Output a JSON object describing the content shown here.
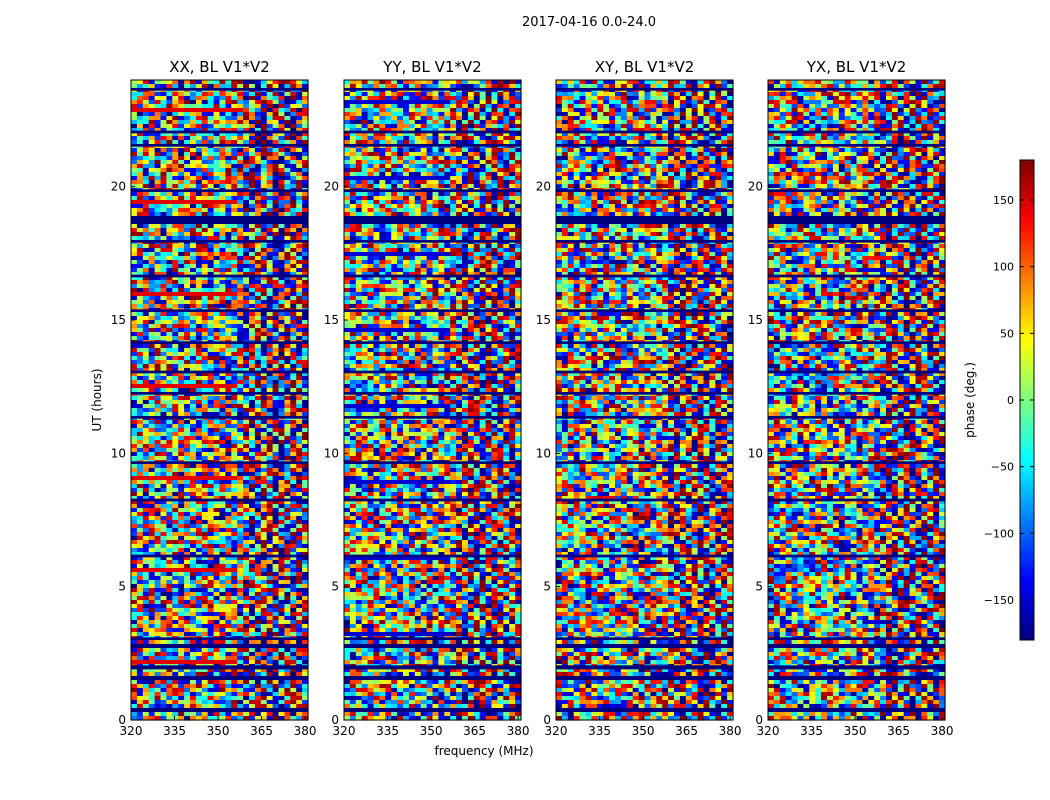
{
  "chart_data": {
    "type": "heatmap",
    "title": "2017-04-16 0.0-24.0",
    "xlabel": "frequency (MHz)",
    "ylabel": "UT (hours)",
    "xlim": [
      320,
      381
    ],
    "ylim": [
      0,
      24
    ],
    "x_ticks": [
      "320",
      "335",
      "350",
      "365",
      "380"
    ],
    "x_tick_values": [
      320,
      335,
      350,
      365,
      380
    ],
    "y_ticks": [
      "0",
      "5",
      "10",
      "15",
      "20"
    ],
    "y_tick_values": [
      0,
      5,
      10,
      15,
      20
    ],
    "panels": [
      {
        "title": "XX, BL V1*V2",
        "polarization": "XX"
      },
      {
        "title": "YY, BL V1*V2",
        "polarization": "YY"
      },
      {
        "title": "XY, BL V1*V2",
        "polarization": "XY"
      },
      {
        "title": "YX, BL V1*V2",
        "polarization": "YX"
      }
    ],
    "colorbar": {
      "label": "phase (deg.)",
      "range": [
        -180,
        180
      ],
      "ticks": [
        "150",
        "100",
        "50",
        "0",
        "−50",
        "−100",
        "−150"
      ],
      "tick_values": [
        150,
        100,
        50,
        0,
        -50,
        -100,
        -150
      ],
      "colormap": "jet"
    },
    "flagged_bands_hours": [
      [
        0.3,
        0.45
      ],
      [
        1.5,
        1.65
      ],
      [
        1.9,
        2.05
      ],
      [
        2.7,
        2.85
      ],
      [
        3.0,
        3.1
      ],
      [
        6.1,
        6.2
      ],
      [
        8.2,
        8.3
      ],
      [
        9.6,
        9.7
      ],
      [
        11.3,
        11.4
      ],
      [
        12.2,
        12.3
      ],
      [
        13.0,
        13.1
      ],
      [
        14.1,
        14.2
      ],
      [
        15.3,
        15.4
      ],
      [
        16.6,
        16.7
      ],
      [
        17.9,
        18.0
      ],
      [
        18.6,
        18.9
      ],
      [
        19.8,
        19.9
      ],
      [
        21.5,
        21.6
      ],
      [
        22.0,
        22.1
      ],
      [
        23.6,
        23.7
      ]
    ]
  }
}
